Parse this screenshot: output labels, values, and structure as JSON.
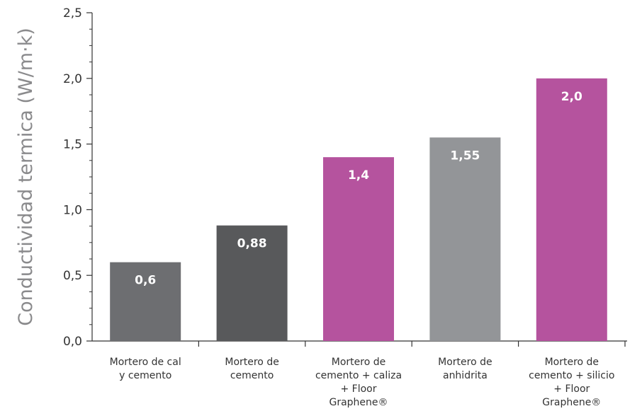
{
  "chart_data": {
    "type": "bar",
    "ylabel": "Conductividad termica  (W/m·k)",
    "xlabel": "",
    "title": "",
    "ylim": [
      0,
      2.5
    ],
    "y_ticks": [
      0,
      0.5,
      1.0,
      1.5,
      2.0,
      2.5
    ],
    "y_tick_labels": [
      "0,0",
      "0,5",
      "1,0",
      "1,5",
      "2,0",
      "2,5"
    ],
    "minor_ticks_per_interval": 4,
    "grid": false,
    "categories": [
      [
        "Mortero de cal",
        "y cemento"
      ],
      [
        "Mortero de",
        "cemento"
      ],
      [
        "Mortero de",
        "cemento + caliza",
        "+ Floor",
        "Graphene®"
      ],
      [
        "Mortero de",
        "anhidrita"
      ],
      [
        "Mortero de",
        "cemento + silicio",
        "+ Floor",
        "Graphene®"
      ]
    ],
    "values": [
      0.6,
      0.88,
      1.4,
      1.55,
      2.0
    ],
    "value_labels": [
      "0,6",
      "0,88",
      "1,4",
      "1,55",
      "2,0"
    ],
    "colors": [
      "#6d6e71",
      "#58595b",
      "#b5539e",
      "#939598",
      "#b5539e"
    ],
    "axis_color": "#333333",
    "label_color": "#ffffff"
  }
}
